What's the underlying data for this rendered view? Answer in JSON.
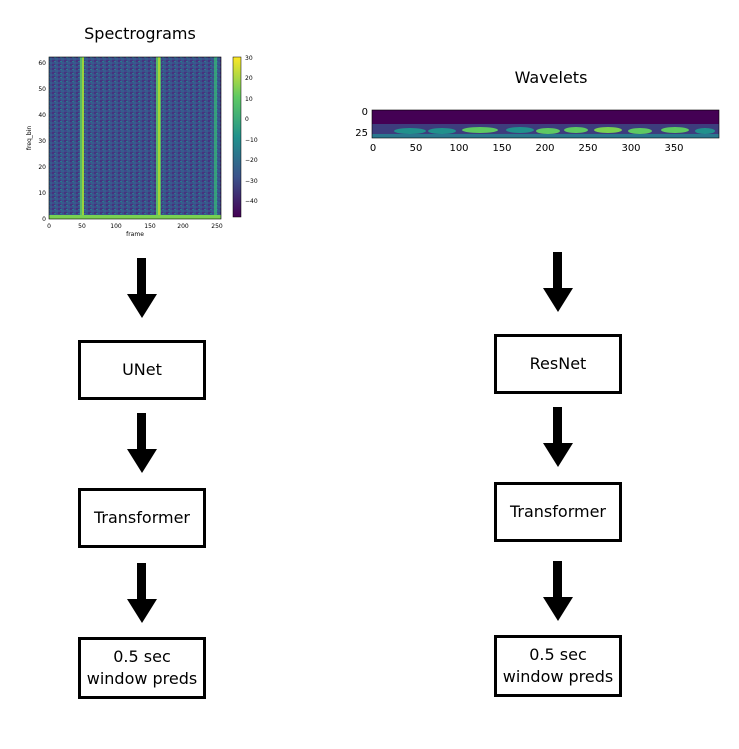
{
  "left_column": {
    "title": "Spectrograms",
    "spectrogram": {
      "xlabel": "frame",
      "ylabel": "freq_bin",
      "x_ticks": [
        "0",
        "50",
        "100",
        "150",
        "200",
        "250"
      ],
      "y_ticks": [
        "0",
        "10",
        "20",
        "30",
        "40",
        "50",
        "60"
      ],
      "colorbar_ticks": [
        "30",
        "20",
        "10",
        "0",
        "−10",
        "−20",
        "−30",
        "−40"
      ]
    },
    "boxes": [
      {
        "line1": "UNet",
        "line2": ""
      },
      {
        "line1": "Transformer",
        "line2": ""
      },
      {
        "line1": "0.5 sec",
        "line2": "window preds"
      }
    ]
  },
  "right_column": {
    "title": "Wavelets",
    "scalogram": {
      "x_ticks": [
        "0",
        "50",
        "100",
        "150",
        "200",
        "250",
        "300",
        "350"
      ],
      "y_ticks": [
        "0",
        "25"
      ]
    },
    "boxes": [
      {
        "line1": "ResNet",
        "line2": ""
      },
      {
        "line1": "Transformer",
        "line2": ""
      },
      {
        "line1": "0.5 sec",
        "line2": "window preds"
      }
    ]
  },
  "colors": {
    "viridis_dark": "#440154",
    "viridis_blue": "#31688e",
    "viridis_teal": "#21918c",
    "viridis_green": "#5ec962",
    "viridis_yellow": "#fde725"
  }
}
